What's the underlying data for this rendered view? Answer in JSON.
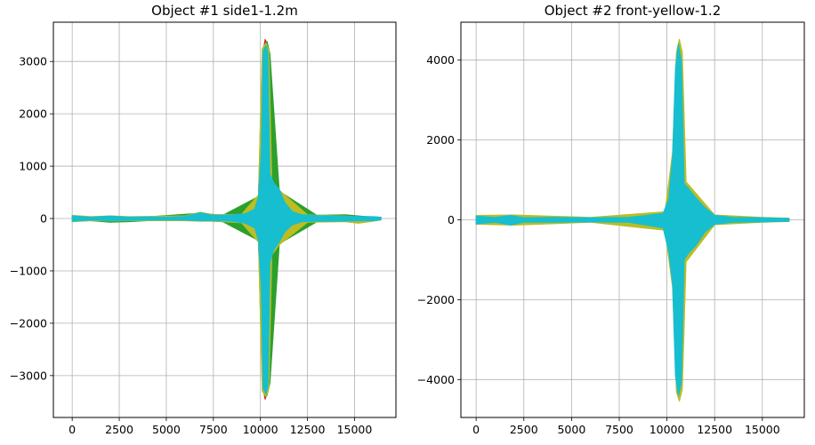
{
  "chart_data": [
    {
      "type": "line",
      "title": "Object #1 side1-1.2m",
      "xlabel": "",
      "ylabel": "",
      "xlim": [
        -1000,
        17200
      ],
      "ylim": [
        -3800,
        3750
      ],
      "xticks": [
        0,
        2500,
        5000,
        7500,
        10000,
        12500,
        15000
      ],
      "xtick_labels": [
        "0",
        "2500",
        "5000",
        "7500",
        "10000",
        "12500",
        "15000"
      ],
      "yticks": [
        -3000,
        -2000,
        -1000,
        0,
        1000,
        2000,
        3000
      ],
      "ytick_labels": [
        "−3000",
        "−2000",
        "−1000",
        "0",
        "1000",
        "2000",
        "3000"
      ],
      "grid": true,
      "legend": "none",
      "series": [
        {
          "color": "#17becf",
          "envelope": {
            "x": [
              0,
              1000,
              2000,
              3000,
              4000,
              5000,
              6000,
              6800,
              7500,
              8500,
              9200,
              9700,
              9900,
              10050,
              10150,
              10300,
              10400,
              10500,
              10700,
              11000,
              11300,
              11700,
              12200,
              13000,
              14000,
              15000,
              16000,
              16400
            ],
            "upper": [
              50,
              25,
              45,
              25,
              30,
              25,
              40,
              110,
              60,
              70,
              90,
              180,
              420,
              1300,
              3200,
              3300,
              3150,
              850,
              680,
              560,
              300,
              130,
              70,
              55,
              45,
              40,
              35,
              25
            ],
            "lower": [
              -50,
              -30,
              -40,
              -35,
              -30,
              -25,
              -30,
              -40,
              -40,
              -50,
              -90,
              -180,
              -420,
              -1300,
              -3250,
              -3350,
              -3200,
              -850,
              -600,
              -450,
              -250,
              -120,
              -60,
              -50,
              -50,
              -45,
              -40,
              -25
            ]
          }
        },
        {
          "color": "#bcbd22",
          "envelope": {
            "x": [
              0,
              1000,
              2000,
              3000,
              4000,
              6000,
              6800,
              7500,
              9000,
              9900,
              10100,
              10300,
              10450,
              10600,
              11000,
              12500,
              14500,
              15200,
              16000,
              16400
            ],
            "upper": [
              60,
              35,
              50,
              35,
              40,
              50,
              120,
              70,
              80,
              450,
              3250,
              3350,
              3200,
              700,
              540,
              70,
              45,
              30,
              30,
              20
            ],
            "lower": [
              -60,
              -40,
              -45,
              -40,
              -40,
              -40,
              -50,
              -50,
              -80,
              -450,
              -3300,
              -3400,
              -3250,
              -700,
              -500,
              -70,
              -60,
              -90,
              -50,
              -25
            ]
          }
        },
        {
          "color": "#2ca02c",
          "envelope": {
            "x": [
              0,
              1000,
              2000,
              3000,
              4000,
              6800,
              8000,
              9900,
              10200,
              10350,
              10500,
              11000,
              13000,
              14500,
              15500,
              16400
            ],
            "upper": [
              40,
              30,
              40,
              30,
              30,
              100,
              60,
              420,
              3300,
              3380,
              3150,
              520,
              60,
              70,
              40,
              20
            ],
            "lower": [
              -40,
              -40,
              -70,
              -60,
              -40,
              -40,
              -60,
              -420,
              -3320,
              -3380,
              -3150,
              -480,
              -60,
              -50,
              -40,
              -20
            ]
          }
        },
        {
          "color": "#d62728",
          "envelope": {
            "x": [
              9900,
              10100,
              10250,
              10400,
              10550,
              10700
            ],
            "upper": [
              420,
              3100,
              3420,
              3300,
              700,
              600
            ],
            "lower": [
              -420,
              -3150,
              -3450,
              -3300,
              -700,
              -550
            ]
          }
        }
      ]
    },
    {
      "type": "line",
      "title": "Object #2 front-yellow-1.2",
      "xlabel": "",
      "ylabel": "",
      "xlim": [
        -800,
        17200
      ],
      "ylim": [
        -4950,
        4950
      ],
      "xticks": [
        0,
        2500,
        5000,
        7500,
        10000,
        12500,
        15000
      ],
      "xtick_labels": [
        "0",
        "2500",
        "5000",
        "7500",
        "10000",
        "12500",
        "15000"
      ],
      "yticks": [
        -4000,
        -2000,
        0,
        2000,
        4000
      ],
      "ytick_labels": [
        "−4000",
        "−2000",
        "0",
        "2000",
        "4000"
      ],
      "grid": true,
      "legend": "none",
      "series": [
        {
          "color": "#17becf",
          "envelope": {
            "x": [
              0,
              1000,
              1800,
              2500,
              4000,
              6000,
              8000,
              9800,
              10100,
              10300,
              10450,
              10600,
              10750,
              10900,
              11100,
              11500,
              12000,
              12500,
              13500,
              15000,
              16400
            ],
            "upper": [
              90,
              60,
              110,
              50,
              60,
              50,
              60,
              160,
              520,
              1600,
              3800,
              4400,
              4000,
              900,
              800,
              560,
              300,
              110,
              60,
              50,
              35
            ],
            "lower": [
              -100,
              -60,
              -130,
              -60,
              -60,
              -50,
              -60,
              -200,
              -800,
              -1600,
              -3900,
              -4400,
              -4100,
              -1000,
              -850,
              -650,
              -300,
              -110,
              -60,
              -50,
              -35
            ]
          }
        },
        {
          "color": "#bcbd22",
          "envelope": {
            "x": [
              0,
              2000,
              6000,
              9900,
              10300,
              10500,
              10650,
              10800,
              11000,
              12500,
              15000,
              16400
            ],
            "upper": [
              110,
              120,
              60,
              200,
              1700,
              4200,
              4520,
              4200,
              950,
              120,
              60,
              40
            ],
            "lower": [
              -110,
              -130,
              -60,
              -260,
              -1700,
              -4300,
              -4540,
              -4250,
              -1050,
              -120,
              -60,
              -40
            ]
          }
        }
      ]
    }
  ]
}
